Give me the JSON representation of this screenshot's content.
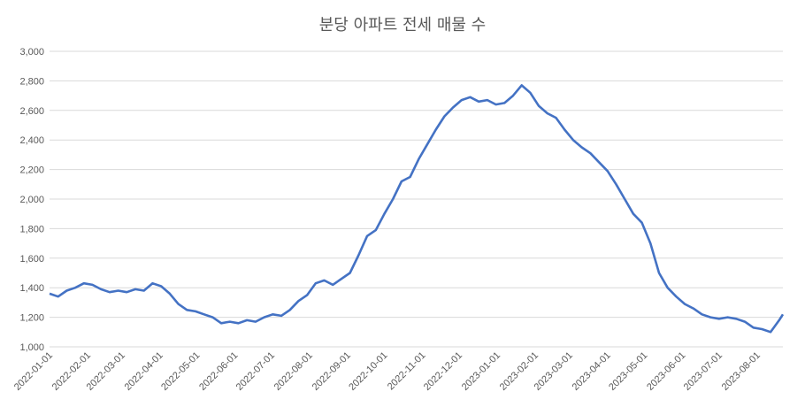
{
  "chart_data": {
    "type": "line",
    "title": "분당 아파트 전세 매물 수",
    "xlabel": "",
    "ylabel": "",
    "ylim": [
      1000,
      3000
    ],
    "y_ticks": [
      "1,000",
      "1,200",
      "1,400",
      "1,600",
      "1,800",
      "2,000",
      "2,200",
      "2,400",
      "2,600",
      "2,800",
      "3,000"
    ],
    "y_tick_values": [
      1000,
      1200,
      1400,
      1600,
      1800,
      2000,
      2200,
      2400,
      2600,
      2800,
      3000
    ],
    "x_range": [
      "2022-01-01",
      "2023-08-22"
    ],
    "x_ticks": [
      "2022-01-01",
      "2022-02-01",
      "2022-03-01",
      "2022-04-01",
      "2022-05-01",
      "2022-06-01",
      "2022-07-01",
      "2022-08-01",
      "2022-09-01",
      "2022-10-01",
      "2022-11-01",
      "2022-12-01",
      "2023-01-01",
      "2023-02-01",
      "2023-03-01",
      "2023-04-01",
      "2023-05-01",
      "2023-06-01",
      "2023-07-01",
      "2023-08-01"
    ],
    "grid": true,
    "legend": "none",
    "line_color": "#4472c4",
    "series": [
      {
        "x": [
          "2022-01-01",
          "2022-01-08",
          "2022-01-15",
          "2022-01-22",
          "2022-01-29",
          "2022-02-05",
          "2022-02-12",
          "2022-02-19",
          "2022-02-26",
          "2022-03-05",
          "2022-03-12",
          "2022-03-19",
          "2022-03-26",
          "2022-04-02",
          "2022-04-09",
          "2022-04-16",
          "2022-04-23",
          "2022-04-30",
          "2022-05-07",
          "2022-05-14",
          "2022-05-21",
          "2022-05-28",
          "2022-06-04",
          "2022-06-11",
          "2022-06-18",
          "2022-06-25",
          "2022-07-02",
          "2022-07-09",
          "2022-07-16",
          "2022-07-23",
          "2022-07-30",
          "2022-08-06",
          "2022-08-13",
          "2022-08-20",
          "2022-08-27",
          "2022-09-03",
          "2022-09-10",
          "2022-09-17",
          "2022-09-24",
          "2022-10-01",
          "2022-10-08",
          "2022-10-15",
          "2022-10-22",
          "2022-10-29",
          "2022-11-05",
          "2022-11-12",
          "2022-11-19",
          "2022-11-26",
          "2022-12-03",
          "2022-12-10",
          "2022-12-17",
          "2022-12-24",
          "2022-12-31",
          "2023-01-07",
          "2023-01-14",
          "2023-01-21",
          "2023-01-28",
          "2023-02-04",
          "2023-02-11",
          "2023-02-18",
          "2023-02-25",
          "2023-03-04",
          "2023-03-11",
          "2023-03-18",
          "2023-03-25",
          "2023-04-01",
          "2023-04-08",
          "2023-04-15",
          "2023-04-22",
          "2023-04-29",
          "2023-05-06",
          "2023-05-13",
          "2023-05-20",
          "2023-05-27",
          "2023-06-03",
          "2023-06-10",
          "2023-06-17",
          "2023-06-24",
          "2023-07-01",
          "2023-07-08",
          "2023-07-15",
          "2023-07-22",
          "2023-07-29",
          "2023-08-05",
          "2023-08-12",
          "2023-08-19",
          "2023-08-22"
        ],
        "values": [
          1360,
          1340,
          1380,
          1400,
          1430,
          1420,
          1390,
          1370,
          1380,
          1370,
          1390,
          1380,
          1430,
          1410,
          1360,
          1290,
          1250,
          1240,
          1220,
          1200,
          1160,
          1170,
          1160,
          1180,
          1170,
          1200,
          1220,
          1210,
          1250,
          1310,
          1350,
          1430,
          1450,
          1420,
          1460,
          1500,
          1620,
          1750,
          1790,
          1900,
          2000,
          2120,
          2150,
          2270,
          2370,
          2470,
          2560,
          2620,
          2670,
          2690,
          2660,
          2670,
          2640,
          2650,
          2700,
          2770,
          2720,
          2630,
          2580,
          2550,
          2470,
          2400,
          2350,
          2310,
          2250,
          2190,
          2100,
          2000,
          1900,
          1840,
          1700,
          1500,
          1400,
          1340,
          1290,
          1260,
          1220,
          1200,
          1190,
          1200,
          1190,
          1170,
          1130,
          1120,
          1100,
          1180,
          1220
        ]
      }
    ]
  }
}
